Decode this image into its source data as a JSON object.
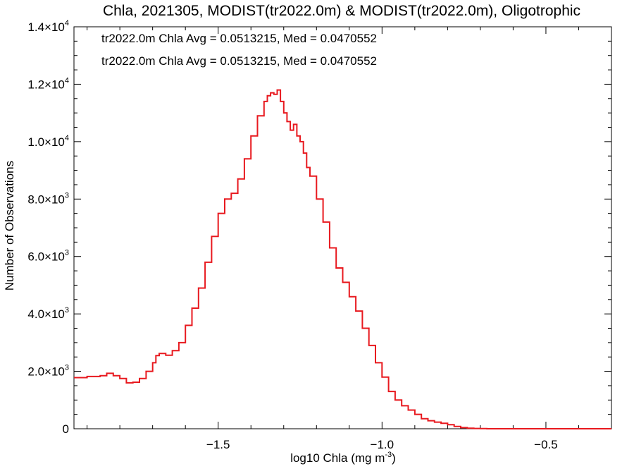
{
  "chart_data": {
    "type": "line",
    "step": true,
    "title": "Chla, 2021305, MODIST(tr2022.0m) & MODIST(tr2022.0m), Oligotrophic",
    "xlabel": "log10 Chla (mg m",
    "xlabel_sup": "-3",
    "xlabel_suffix": ")",
    "ylabel": "Number of Observations",
    "xlim": [
      -1.94,
      -0.3
    ],
    "ylim": [
      0,
      14000
    ],
    "grid": false,
    "x_ticks": [
      {
        "value": -1.5,
        "label": "−1.5"
      },
      {
        "value": -1.0,
        "label": "−1.0"
      },
      {
        "value": -0.5,
        "label": "−0.5"
      }
    ],
    "y_ticks": [
      {
        "value": 0,
        "mant": "0",
        "exp": ""
      },
      {
        "value": 2000,
        "mant": "2.0×10",
        "exp": "3"
      },
      {
        "value": 4000,
        "mant": "4.0×10",
        "exp": "3"
      },
      {
        "value": 6000,
        "mant": "6.0×10",
        "exp": "3"
      },
      {
        "value": 8000,
        "mant": "8.0×10",
        "exp": "3"
      },
      {
        "value": 10000,
        "mant": "1.0×10",
        "exp": "4"
      },
      {
        "value": 12000,
        "mant": "1.2×10",
        "exp": "4"
      },
      {
        "value": 14000,
        "mant": "1.4×10",
        "exp": "4"
      }
    ],
    "annotations": [
      {
        "text": "tr2022.0m Chla Avg = 0.0513215, Med = 0.0470552",
        "color": "#000000"
      },
      {
        "text": "tr2022.0m Chla Avg = 0.0513215, Med = 0.0470552",
        "color": "#e8191f"
      }
    ],
    "series": [
      {
        "color": "#e8191f",
        "x": [
          -1.94,
          -1.9,
          -1.86,
          -1.84,
          -1.82,
          -1.8,
          -1.78,
          -1.76,
          -1.74,
          -1.72,
          -1.7,
          -1.69,
          -1.68,
          -1.66,
          -1.64,
          -1.62,
          -1.6,
          -1.58,
          -1.56,
          -1.54,
          -1.52,
          -1.5,
          -1.48,
          -1.46,
          -1.44,
          -1.42,
          -1.4,
          -1.38,
          -1.36,
          -1.35,
          -1.34,
          -1.33,
          -1.32,
          -1.31,
          -1.3,
          -1.29,
          -1.28,
          -1.27,
          -1.26,
          -1.25,
          -1.24,
          -1.23,
          -1.22,
          -1.2,
          -1.18,
          -1.16,
          -1.14,
          -1.12,
          -1.1,
          -1.08,
          -1.06,
          -1.04,
          -1.02,
          -1.0,
          -0.98,
          -0.96,
          -0.94,
          -0.92,
          -0.9,
          -0.88,
          -0.86,
          -0.84,
          -0.82,
          -0.8,
          -0.78,
          -0.76,
          -0.74,
          -0.72,
          -0.7,
          -0.68,
          -0.66,
          -0.64,
          -0.62,
          -0.6,
          -0.55,
          -0.5,
          -0.45,
          -0.4,
          -0.35,
          -0.3
        ],
        "y": [
          1780,
          1820,
          1850,
          1930,
          1850,
          1750,
          1600,
          1620,
          1750,
          2000,
          2300,
          2550,
          2620,
          2560,
          2720,
          3000,
          3600,
          4200,
          4900,
          5800,
          6700,
          7500,
          8000,
          8200,
          8700,
          9400,
          10200,
          10900,
          11400,
          11600,
          11700,
          11650,
          11800,
          11400,
          11000,
          10700,
          10400,
          10600,
          10200,
          10000,
          9600,
          9100,
          8800,
          8000,
          7200,
          6300,
          5600,
          5100,
          4600,
          4100,
          3500,
          2900,
          2300,
          1800,
          1300,
          1000,
          800,
          650,
          500,
          350,
          280,
          230,
          190,
          140,
          80,
          40,
          20,
          10,
          5,
          0,
          0,
          0,
          0,
          0,
          0,
          0,
          0,
          0,
          0,
          0
        ]
      }
    ]
  }
}
